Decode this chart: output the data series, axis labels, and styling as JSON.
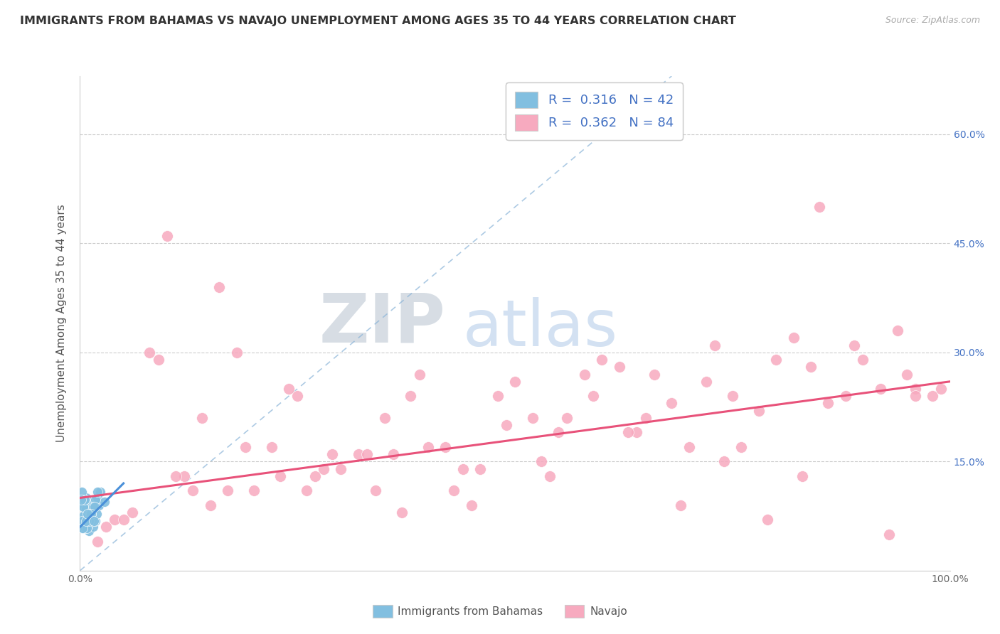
{
  "title": "IMMIGRANTS FROM BAHAMAS VS NAVAJO UNEMPLOYMENT AMONG AGES 35 TO 44 YEARS CORRELATION CHART",
  "source": "Source: ZipAtlas.com",
  "ylabel": "Unemployment Among Ages 35 to 44 years",
  "xlim": [
    0.0,
    1.0
  ],
  "ylim": [
    0.0,
    0.68
  ],
  "legend_label1": "Immigrants from Bahamas",
  "legend_label2": "Navajo",
  "R1": "0.316",
  "N1": "42",
  "R2": "0.362",
  "N2": "84",
  "color_blue": "#82bfe0",
  "color_pink": "#f7aabf",
  "color_line_blue": "#4a90d9",
  "color_line_pink": "#e8527a",
  "background_color": "#ffffff",
  "grid_color": "#cccccc",
  "tick_label_color": "#4472c4",
  "axis_label_color": "#666666",
  "blue_x": [
    0.005,
    0.008,
    0.01,
    0.012,
    0.003,
    0.007,
    0.015,
    0.002,
    0.006,
    0.018,
    0.022,
    0.009,
    0.004,
    0.02,
    0.028,
    0.014,
    0.019,
    0.007,
    0.003,
    0.005,
    0.008,
    0.011,
    0.016,
    0.023,
    0.006,
    0.002,
    0.013,
    0.018,
    0.004,
    0.008,
    0.01,
    0.015,
    0.012,
    0.005,
    0.003,
    0.007,
    0.017,
    0.013,
    0.001,
    0.02,
    0.016,
    0.009
  ],
  "blue_y": [
    0.072,
    0.095,
    0.055,
    0.07,
    0.088,
    0.1,
    0.06,
    0.108,
    0.08,
    0.068,
    0.09,
    0.06,
    0.075,
    0.1,
    0.095,
    0.07,
    0.078,
    0.085,
    0.058,
    0.098,
    0.068,
    0.078,
    0.088,
    0.108,
    0.058,
    0.068,
    0.078,
    0.098,
    0.088,
    0.058,
    0.068,
    0.088,
    0.078,
    0.098,
    0.058,
    0.068,
    0.088,
    0.078,
    0.098,
    0.108,
    0.068,
    0.078
  ],
  "pink_x": [
    0.04,
    0.1,
    0.15,
    0.03,
    0.2,
    0.08,
    0.25,
    0.12,
    0.3,
    0.18,
    0.35,
    0.22,
    0.4,
    0.28,
    0.45,
    0.32,
    0.5,
    0.38,
    0.55,
    0.42,
    0.6,
    0.48,
    0.65,
    0.52,
    0.7,
    0.58,
    0.75,
    0.62,
    0.8,
    0.68,
    0.85,
    0.72,
    0.9,
    0.78,
    0.95,
    0.82,
    0.98,
    0.88,
    0.06,
    0.92,
    0.14,
    0.96,
    0.24,
    0.34,
    0.44,
    0.54,
    0.64,
    0.74,
    0.84,
    0.94,
    0.09,
    0.16,
    0.26,
    0.36,
    0.46,
    0.56,
    0.66,
    0.76,
    0.86,
    0.96,
    0.11,
    0.19,
    0.29,
    0.39,
    0.49,
    0.59,
    0.69,
    0.79,
    0.89,
    0.99,
    0.02,
    0.05,
    0.13,
    0.23,
    0.33,
    0.43,
    0.53,
    0.63,
    0.73,
    0.83,
    0.93,
    0.17,
    0.27,
    0.37
  ],
  "pink_y": [
    0.07,
    0.46,
    0.09,
    0.06,
    0.11,
    0.3,
    0.24,
    0.13,
    0.14,
    0.3,
    0.21,
    0.17,
    0.17,
    0.14,
    0.09,
    0.16,
    0.26,
    0.24,
    0.19,
    0.17,
    0.29,
    0.24,
    0.21,
    0.21,
    0.17,
    0.27,
    0.24,
    0.28,
    0.29,
    0.23,
    0.5,
    0.26,
    0.29,
    0.22,
    0.27,
    0.32,
    0.24,
    0.24,
    0.08,
    0.25,
    0.21,
    0.25,
    0.25,
    0.11,
    0.14,
    0.13,
    0.19,
    0.15,
    0.28,
    0.33,
    0.29,
    0.39,
    0.11,
    0.16,
    0.14,
    0.21,
    0.27,
    0.17,
    0.23,
    0.24,
    0.13,
    0.17,
    0.16,
    0.27,
    0.2,
    0.24,
    0.09,
    0.07,
    0.31,
    0.25,
    0.04,
    0.07,
    0.11,
    0.13,
    0.16,
    0.11,
    0.15,
    0.19,
    0.31,
    0.13,
    0.05,
    0.11,
    0.13,
    0.08
  ]
}
